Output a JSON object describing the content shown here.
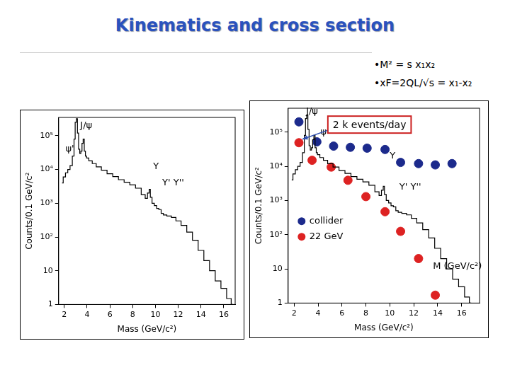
{
  "slide": {
    "title": "Kinematics and cross section",
    "bullets": [
      "•M² = s x₁x₂",
      "•xF=2QL/√s = x₁-x₂"
    ]
  },
  "chart_data": [
    {
      "type": "line",
      "x_label": "Mass (GeV/c²)",
      "y_label": "Counts/0.1 GeV/c²",
      "log": "y",
      "grid": false,
      "xlim": [
        1.5,
        17
      ],
      "xticks": [
        2,
        4,
        6,
        8,
        10,
        12,
        14,
        16
      ],
      "ylim": [
        1,
        350000
      ],
      "yticks": [
        1,
        10,
        {
          "value": 100,
          "label": "10²"
        },
        {
          "value": 1000,
          "label": "10³"
        },
        {
          "value": 10000,
          "label": "10⁴"
        },
        {
          "value": 100000,
          "label": "10⁵"
        }
      ],
      "series": [
        {
          "type": "step",
          "color": "#000000",
          "x": [
            1.8,
            2.0,
            2.2,
            2.4,
            2.6,
            2.8,
            2.9,
            3.0,
            3.1,
            3.2,
            3.3,
            3.4,
            3.5,
            3.6,
            3.7,
            3.8,
            3.9,
            4.0,
            4.3,
            4.6,
            5.0,
            5.5,
            6.0,
            6.5,
            7.0,
            7.5,
            8.0,
            8.5,
            9.0,
            9.2,
            9.4,
            9.5,
            9.6,
            9.8,
            10.0,
            10.2,
            10.4,
            10.6,
            10.8,
            11.2,
            11.6,
            12.0,
            12.5,
            13.0,
            13.5,
            14.0,
            14.5,
            15.0,
            15.5,
            16.0,
            16.5,
            16.8
          ],
          "values": [
            4000,
            6000,
            8000,
            10000,
            13000,
            25000,
            80000,
            250000,
            320000,
            120000,
            40000,
            30000,
            35000,
            60000,
            80000,
            35000,
            25000,
            22000,
            18000,
            15000,
            12000,
            9500,
            7500,
            6200,
            5000,
            4200,
            3500,
            2800,
            1800,
            1400,
            2000,
            2600,
            1500,
            1000,
            850,
            700,
            650,
            500,
            450,
            420,
            380,
            300,
            220,
            140,
            80,
            40,
            20,
            10,
            5,
            3,
            1.5,
            1
          ]
        }
      ],
      "annotations": [
        {
          "text": "J/ψ",
          "x": 3.4,
          "y": 200000
        },
        {
          "text": "ψ'",
          "x": 2.1,
          "y": 40000
        },
        {
          "text": "Υ",
          "x": 9.8,
          "y": 12000
        },
        {
          "text": "Υ' Υ''",
          "x": 10.6,
          "y": 4000
        }
      ]
    },
    {
      "type": "line",
      "x_label": "Mass (GeV/c²)",
      "y_label": "Counts/0.1 GeV/c²",
      "log": "y",
      "grid": false,
      "legend": "left",
      "xlim": [
        1.5,
        17.5
      ],
      "xticks": [
        2,
        4,
        6,
        8,
        10,
        12,
        14,
        16
      ],
      "ylim": [
        1,
        500000
      ],
      "yticks": [
        1,
        10,
        {
          "value": 100,
          "label": "10²"
        },
        {
          "value": 1000,
          "label": "10³"
        },
        {
          "value": 10000,
          "label": "10⁴"
        },
        {
          "value": 100000,
          "label": "10⁵"
        }
      ],
      "series": [
        {
          "type": "step",
          "color": "#000000",
          "x": [
            1.8,
            2.0,
            2.2,
            2.4,
            2.6,
            2.8,
            2.9,
            3.0,
            3.1,
            3.2,
            3.3,
            3.4,
            3.5,
            3.6,
            3.7,
            3.8,
            3.9,
            4.0,
            4.3,
            4.6,
            5.0,
            5.5,
            6.0,
            6.5,
            7.0,
            7.5,
            8.0,
            8.5,
            9.0,
            9.2,
            9.4,
            9.5,
            9.6,
            9.8,
            10.0,
            10.2,
            10.4,
            10.6,
            10.8,
            11.2,
            11.6,
            12.0,
            12.5,
            13.0,
            13.5,
            14.0,
            14.5,
            15.0,
            15.5,
            16.0,
            16.5,
            16.8
          ],
          "values": [
            4000,
            6000,
            8000,
            10000,
            13000,
            25000,
            80000,
            250000,
            320000,
            120000,
            40000,
            30000,
            35000,
            60000,
            80000,
            35000,
            25000,
            22000,
            18000,
            15000,
            12000,
            9500,
            7500,
            6200,
            5000,
            4200,
            3500,
            2800,
            1800,
            1400,
            2000,
            2600,
            1500,
            1000,
            850,
            700,
            650,
            500,
            450,
            420,
            380,
            300,
            220,
            140,
            80,
            40,
            20,
            10,
            5,
            3,
            1.5,
            1
          ]
        },
        {
          "name": "collider",
          "type": "scatter",
          "color": "#1c2a8c",
          "x": [
            2.4,
            3.9,
            5.3,
            6.7,
            8.1,
            9.6,
            10.9,
            12.4,
            13.8,
            15.2
          ],
          "values": [
            200000,
            52000,
            39000,
            36000,
            34000,
            31000,
            13000,
            12000,
            11000,
            12000
          ]
        },
        {
          "name": "22 GeV",
          "type": "scatter",
          "color": "#dd2222",
          "x": [
            2.4,
            3.5,
            5.1,
            6.5,
            8.0,
            9.6,
            10.9,
            12.4,
            13.8
          ],
          "values": [
            49000,
            15000,
            9500,
            3900,
            1300,
            470,
            125,
            20,
            1.7
          ]
        }
      ],
      "annotations": [
        {
          "text": "J/ψ",
          "x": 3.0,
          "y": 400000
        },
        {
          "text": "ψ'",
          "x": 4.2,
          "y": 100000
        },
        {
          "text": "Υ",
          "x": 10.0,
          "y": 20000
        },
        {
          "text": "Υ' Υ''",
          "x": 10.8,
          "y": 2500
        },
        {
          "text": "M (GeV/c²)",
          "x": 13.6,
          "y": 12
        }
      ],
      "callout": {
        "text": "2 k events/day",
        "x": 8.3,
        "y": 166000
      }
    }
  ]
}
